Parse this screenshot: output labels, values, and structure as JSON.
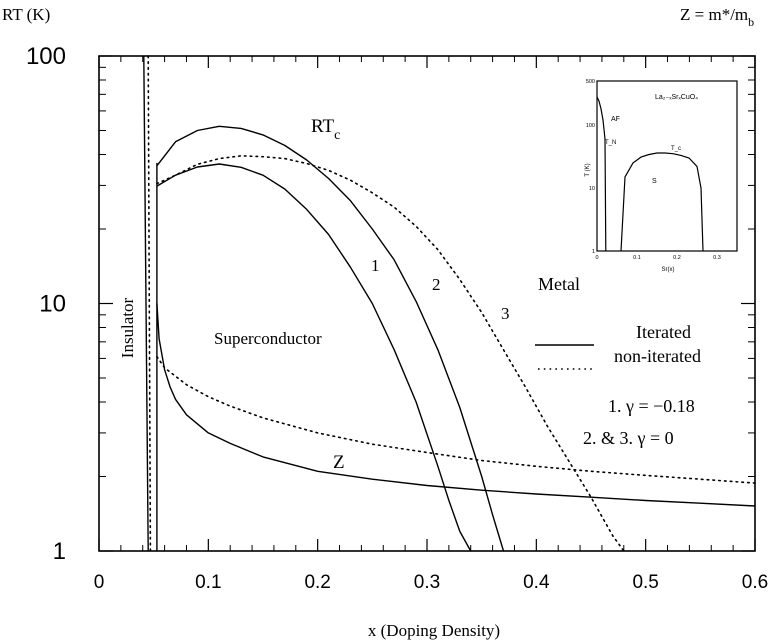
{
  "chart_data": {
    "type": "line",
    "title": "",
    "ylabel": "RT (K)",
    "xlabel": "x (Doping Density)",
    "top_right_label": "Z = m*/m_b",
    "y_scale": "log",
    "xlim": [
      0,
      0.6
    ],
    "ylim": [
      1,
      100
    ],
    "x_ticks": [
      0,
      0.1,
      0.2,
      0.3,
      0.4,
      0.5,
      0.6
    ],
    "x_tick_labels": [
      "0",
      "0.1",
      "0.2",
      "0.3",
      "0.4",
      "0.5",
      "0.6"
    ],
    "y_ticks": [
      1,
      10,
      100
    ],
    "y_tick_labels": [
      "1",
      "10",
      "100"
    ],
    "grid": false,
    "annotations": {
      "rtc_label": "RT",
      "rtc_sub": "c",
      "z_label": "Z",
      "insulator": "Insulator",
      "superconductor": "Superconductor",
      "metal": "Metal",
      "curve1": "1",
      "curve2": "2",
      "curve3": "3",
      "legend_iterated": "Iterated",
      "legend_noniterated": "non-iterated",
      "gamma1": "1.  γ  = −0.18",
      "gamma23": "2. & 3. γ  = 0"
    },
    "series": [
      {
        "id": "tc1",
        "style": "solid",
        "x": [
          0.053,
          0.07,
          0.09,
          0.11,
          0.13,
          0.15,
          0.17,
          0.19,
          0.21,
          0.23,
          0.25,
          0.27,
          0.29,
          0.31,
          0.32,
          0.33,
          0.34
        ],
        "y": [
          29.8,
          33,
          35.6,
          36.6,
          35.5,
          33,
          29,
          24,
          19,
          14,
          10,
          6.5,
          4.0,
          2.2,
          1.6,
          1.2,
          1.0
        ]
      },
      {
        "id": "tc2",
        "style": "solid",
        "x": [
          0.053,
          0.07,
          0.09,
          0.11,
          0.13,
          0.15,
          0.17,
          0.19,
          0.21,
          0.23,
          0.25,
          0.27,
          0.29,
          0.31,
          0.33,
          0.35,
          0.36,
          0.37
        ],
        "y": [
          36,
          45,
          50,
          52,
          51,
          48,
          43.5,
          38,
          32,
          26,
          20,
          15,
          10.2,
          6.5,
          3.8,
          2.0,
          1.4,
          1.0
        ]
      },
      {
        "id": "tc3",
        "style": "dotted",
        "x": [
          0.053,
          0.07,
          0.09,
          0.11,
          0.13,
          0.15,
          0.17,
          0.19,
          0.21,
          0.23,
          0.25,
          0.27,
          0.29,
          0.31,
          0.33,
          0.35,
          0.37,
          0.39,
          0.41,
          0.43,
          0.45,
          0.47,
          0.48
        ],
        "y": [
          30.5,
          33,
          36.5,
          38.5,
          39.5,
          39.2,
          38.5,
          36.8,
          34.5,
          31.5,
          28,
          24.5,
          20.5,
          16.5,
          12.5,
          9.2,
          6.5,
          4.6,
          3.2,
          2.3,
          1.65,
          1.15,
          1.0
        ]
      },
      {
        "id": "z_iter",
        "style": "solid",
        "x": [
          0.053,
          0.055,
          0.06,
          0.065,
          0.07,
          0.08,
          0.1,
          0.12,
          0.15,
          0.2,
          0.25,
          0.3,
          0.35,
          0.4,
          0.45,
          0.5,
          0.55,
          0.6
        ],
        "y": [
          10,
          7.2,
          5.4,
          4.6,
          4.1,
          3.55,
          3.0,
          2.72,
          2.4,
          2.1,
          1.95,
          1.84,
          1.76,
          1.7,
          1.65,
          1.6,
          1.56,
          1.52
        ]
      },
      {
        "id": "z_noniter",
        "style": "dotted",
        "x": [
          0.053,
          0.06,
          0.08,
          0.1,
          0.12,
          0.15,
          0.2,
          0.25,
          0.3,
          0.35,
          0.4,
          0.45,
          0.5,
          0.55,
          0.6
        ],
        "y": [
          6.1,
          5.5,
          4.7,
          4.2,
          3.85,
          3.45,
          3.0,
          2.7,
          2.5,
          2.32,
          2.2,
          2.1,
          2.02,
          1.95,
          1.88
        ]
      },
      {
        "id": "ins_iter",
        "style": "solid",
        "x": [
          0.041,
          0.043,
          0.045
        ],
        "y": [
          100,
          10,
          1
        ]
      },
      {
        "id": "ins_noniter",
        "style": "dotted",
        "x": [
          0.045,
          0.046,
          0.047
        ],
        "y": [
          100,
          10,
          1
        ]
      },
      {
        "id": "vert_iter",
        "style": "solid",
        "x": [
          0.053,
          0.053
        ],
        "y": [
          1,
          37
        ]
      }
    ],
    "inset": {
      "title": "La₂₋ₓSrₓCuO₄",
      "ylabel": "T (K)",
      "xlabel": "Sr(x)",
      "y_tick_labels": [
        "1",
        "10",
        "100",
        "500"
      ],
      "x_tick_labels": [
        "0",
        "0.1",
        "0.2",
        "0.3"
      ],
      "labels": {
        "af": "AF",
        "tn": "T_N",
        "tc": "T_c",
        "s": "S"
      },
      "af_boundary": {
        "x": [
          0.0,
          0.005,
          0.01,
          0.015,
          0.02,
          0.022
        ],
        "y": [
          280,
          240,
          180,
          120,
          60,
          1
        ]
      },
      "sc_dome": {
        "x": [
          0.06,
          0.07,
          0.09,
          0.11,
          0.13,
          0.15,
          0.17,
          0.19,
          0.21,
          0.23,
          0.25,
          0.26,
          0.265
        ],
        "y": [
          1,
          15,
          25,
          31,
          34,
          36,
          36,
          35,
          33,
          30,
          22,
          10,
          1
        ]
      }
    }
  }
}
